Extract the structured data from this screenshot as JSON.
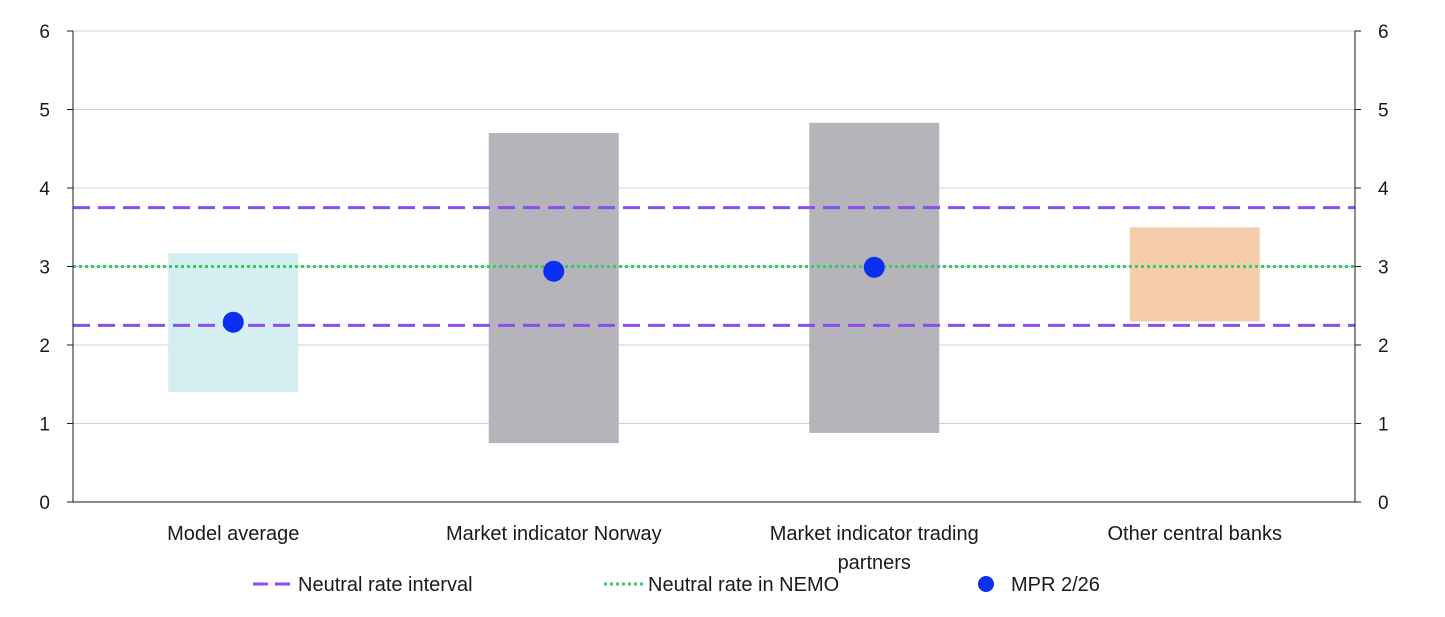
{
  "chart_data": {
    "type": "bar",
    "categories": [
      [
        "Model average"
      ],
      [
        "Market indicator Norway"
      ],
      [
        "Market indicator trading",
        "partners"
      ],
      [
        "Other central banks"
      ]
    ],
    "ranges": [
      {
        "low": 1.4,
        "high": 3.17,
        "color": "#d4eef2"
      },
      {
        "low": 0.75,
        "high": 4.7,
        "color": "#b4b4ba"
      },
      {
        "low": 0.88,
        "high": 4.83,
        "color": "#b4b4ba"
      },
      {
        "low": 2.3,
        "high": 3.5,
        "color": "#f6cdab"
      }
    ],
    "mpr_points": [
      2.29,
      2.94,
      null,
      null
    ],
    "mpr_points_note_removed": true,
    "mpr": [
      2.29,
      2.94,
      2.99,
      null
    ],
    "neutral_rate_interval": [
      2.25,
      3.75
    ],
    "neutral_rate_nemo": 3.0,
    "ylim": [
      0,
      6
    ],
    "yticks": [
      0,
      1,
      2,
      3,
      4,
      5,
      6
    ],
    "grid": true,
    "legend": [
      {
        "label": "Neutral rate interval",
        "color": "#8a4df0",
        "style": "dashed"
      },
      {
        "label": "Neutral rate in NEMO",
        "color": "#33cc66",
        "style": "dotted"
      },
      {
        "label": "MPR 2/26",
        "color": "#0a2ff0",
        "style": "dot"
      }
    ],
    "legend_position": "bottom"
  }
}
